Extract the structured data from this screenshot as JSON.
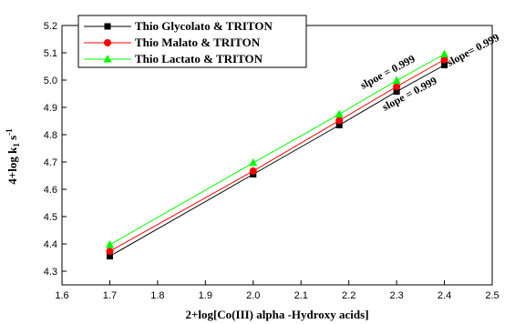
{
  "chart_data": {
    "type": "line",
    "xlabel": "2+log[Co(III) alpha -Hydroxy acids]",
    "ylabel_main": "4+log k",
    "ylabel_sub1": "1",
    "ylabel_mid": " s",
    "ylabel_sup": "-1",
    "xlim": [
      1.6,
      2.5
    ],
    "ylim": [
      4.25,
      5.2
    ],
    "xticks": [
      1.6,
      1.7,
      1.8,
      1.9,
      2.0,
      2.1,
      2.2,
      2.3,
      2.4,
      2.5
    ],
    "yticks": [
      4.3,
      4.4,
      4.5,
      4.6,
      4.7,
      4.8,
      4.9,
      5.0,
      5.1,
      5.2
    ],
    "grid": false,
    "legend_position": "top-left",
    "x": [
      1.7,
      2.0,
      2.18,
      2.3,
      2.4
    ],
    "series": [
      {
        "name": "Thio Glycolato & TRITON",
        "values": [
          4.355,
          4.655,
          4.835,
          4.958,
          5.055
        ],
        "color": "#000000",
        "marker": "square"
      },
      {
        "name": "Thio Malato & TRITON",
        "values": [
          4.373,
          4.667,
          4.852,
          4.976,
          5.075
        ],
        "color": "#ff0000",
        "marker": "circle"
      },
      {
        "name": "Thio Lactato & TRITON",
        "values": [
          4.397,
          4.697,
          4.875,
          4.998,
          5.095
        ],
        "color": "#00ff00",
        "marker": "triangle"
      }
    ],
    "annotations": [
      "slpoe = 0.999",
      "slope= 0.999",
      "slope = 0.999"
    ]
  }
}
